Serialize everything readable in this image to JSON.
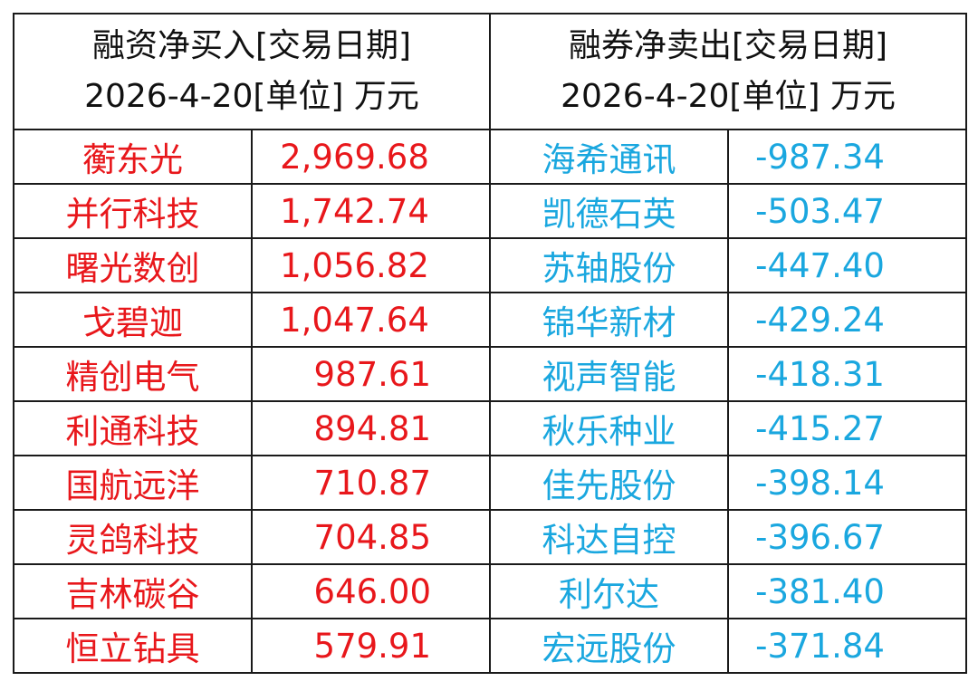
{
  "header": {
    "left_line1": "融资净买入[交易日期]",
    "left_line2": "2026-4-20[单位] 万元",
    "right_line1": "融券净卖出[交易日期]",
    "right_line2": "2026-4-20[单位] 万元"
  },
  "colors": {
    "buy": "#e8171b",
    "sell": "#1aa7df",
    "border": "#1a1a1a",
    "header_text": "#111111"
  },
  "rows": [
    {
      "buy_name": "蘅东光",
      "buy_value": "2,969.68",
      "sell_name": "海希通讯",
      "sell_value": "-987.34"
    },
    {
      "buy_name": "并行科技",
      "buy_value": "1,742.74",
      "sell_name": "凯德石英",
      "sell_value": "-503.47"
    },
    {
      "buy_name": "曙光数创",
      "buy_value": "1,056.82",
      "sell_name": "苏轴股份",
      "sell_value": "-447.40"
    },
    {
      "buy_name": "戈碧迦",
      "buy_value": "1,047.64",
      "sell_name": "锦华新材",
      "sell_value": "-429.24"
    },
    {
      "buy_name": "精创电气",
      "buy_value": "987.61",
      "sell_name": "视声智能",
      "sell_value": "-418.31"
    },
    {
      "buy_name": "利通科技",
      "buy_value": "894.81",
      "sell_name": "秋乐种业",
      "sell_value": "-415.27"
    },
    {
      "buy_name": "国航远洋",
      "buy_value": "710.87",
      "sell_name": "佳先股份",
      "sell_value": "-398.14"
    },
    {
      "buy_name": "灵鸽科技",
      "buy_value": "704.85",
      "sell_name": "科达自控",
      "sell_value": "-396.67"
    },
    {
      "buy_name": "吉林碳谷",
      "buy_value": "646.00",
      "sell_name": "利尔达",
      "sell_value": "-381.40"
    },
    {
      "buy_name": "恒立钻具",
      "buy_value": "579.91",
      "sell_name": "宏远股份",
      "sell_value": "-371.84"
    }
  ]
}
